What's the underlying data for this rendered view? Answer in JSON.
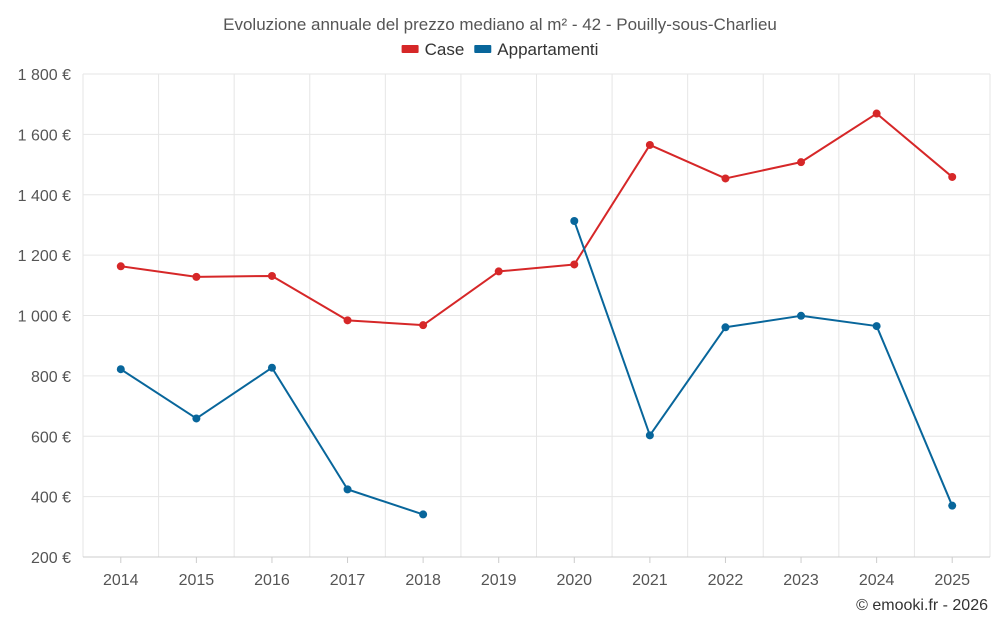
{
  "chart_data": {
    "type": "line",
    "title": "Evoluzione annuale del prezzo mediano al m² - 42 - Pouilly-sous-Charlieu",
    "categories": [
      "2014",
      "2015",
      "2016",
      "2017",
      "2018",
      "2019",
      "2020",
      "2021",
      "2022",
      "2023",
      "2024",
      "2025"
    ],
    "ylim": [
      200,
      1800
    ],
    "yticks": [
      200,
      400,
      600,
      800,
      1000,
      1200,
      1400,
      1600,
      1800
    ],
    "ytick_labels": [
      "200 €",
      "400 €",
      "600 €",
      "800 €",
      "1 000 €",
      "1 200 €",
      "1 400 €",
      "1 600 €",
      "1 800 €"
    ],
    "grid": true,
    "legend_position": "top-center",
    "series": [
      {
        "name": "Case",
        "color": "#d62728",
        "values": [
          1163,
          1128,
          1131,
          984,
          968,
          1146,
          1169,
          1565,
          1454,
          1508,
          1669,
          1459
        ]
      },
      {
        "name": "Appartamenti",
        "color": "#08669b",
        "values": [
          822,
          659,
          827,
          424,
          341,
          null,
          1313,
          603,
          961,
          999,
          965,
          370
        ]
      }
    ]
  },
  "credit": "© emooki.fr - 2026"
}
